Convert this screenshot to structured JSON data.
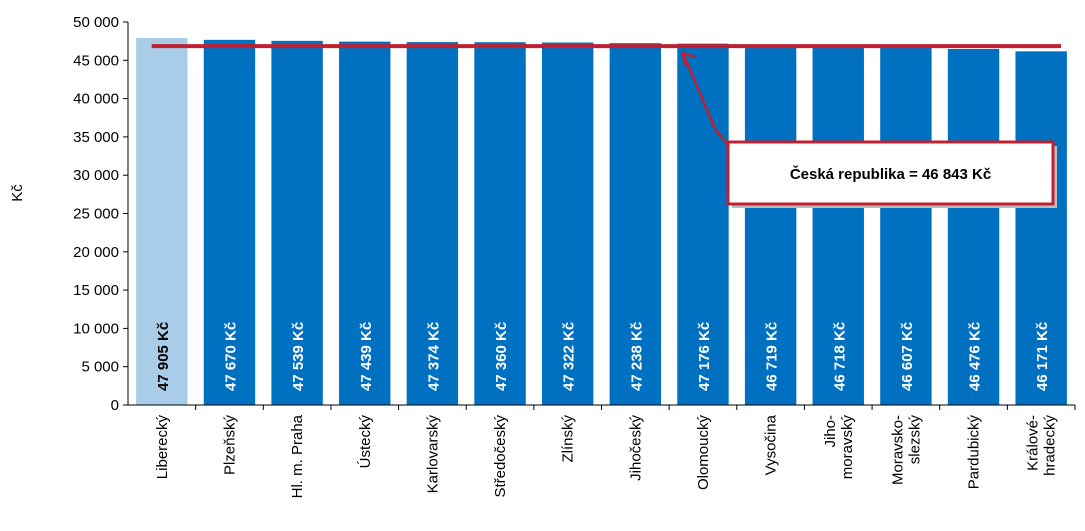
{
  "chart_data": {
    "type": "bar",
    "ylabel": "Kč",
    "ylim": [
      0,
      50000
    ],
    "ytick_step": 5000,
    "yticks": [
      "0",
      "5 000",
      "10 000",
      "15 000",
      "20 000",
      "25 000",
      "30 000",
      "35 000",
      "40 000",
      "45 000",
      "50 000"
    ],
    "grid": false,
    "categories": [
      [
        "Liberecký"
      ],
      [
        "Plzeňský"
      ],
      [
        "Hl. m. Praha"
      ],
      [
        "Ústecký"
      ],
      [
        "Karlovarský"
      ],
      [
        "Středočeský"
      ],
      [
        "Zlínský"
      ],
      [
        "Jihočeský"
      ],
      [
        "Olomoucký"
      ],
      [
        "Vysočina"
      ],
      [
        "Jiho-",
        "moravský"
      ],
      [
        "Moravsko-",
        "slezský"
      ],
      [
        "Pardubický"
      ],
      [
        "Králové-",
        "hradecký"
      ]
    ],
    "values": [
      47905,
      47670,
      47539,
      47439,
      47374,
      47360,
      47322,
      47238,
      47176,
      46719,
      46718,
      46607,
      46476,
      46171
    ],
    "data_labels": [
      "47 905 Kč",
      "47 670 Kč",
      "47 539 Kč",
      "47 439 Kč",
      "47 374 Kč",
      "47 360 Kč",
      "47 322 Kč",
      "47 238 Kč",
      "47 176 Kč",
      "46 719 Kč",
      "46 718 Kč",
      "46 607 Kč",
      "46 476 Kč",
      "46 171 Kč"
    ],
    "highlight_index": 0,
    "reference_line": {
      "value": 46843,
      "label": "Česká republika = 46 843 Kč"
    },
    "colors": {
      "bar": "#0070C0",
      "highlight": "#A9CDE8",
      "reference": "#C0202F",
      "label_on_bar": "#FFFFFF",
      "label_on_highlight": "#000000"
    }
  }
}
